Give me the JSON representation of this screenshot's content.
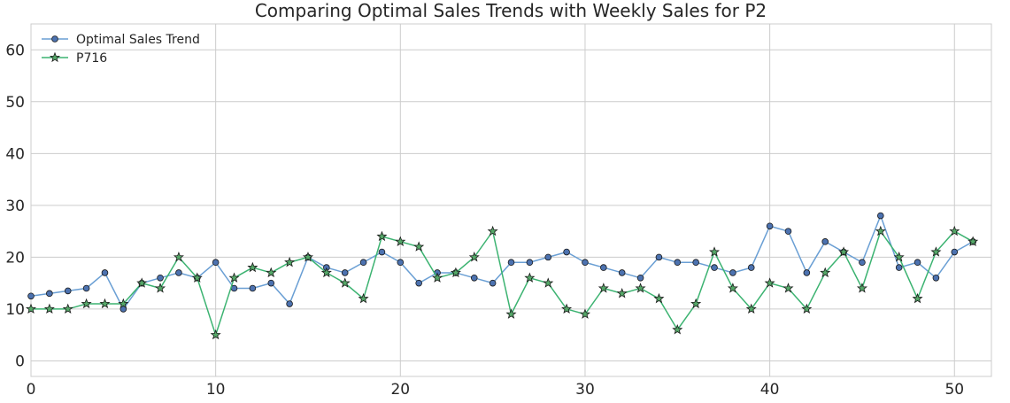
{
  "chart_data": {
    "type": "line",
    "title": "Comparing Optimal Sales Trends with Weekly Sales for P2",
    "xlabel": "",
    "ylabel": "",
    "xlim": [
      0,
      52
    ],
    "ylim": [
      -3,
      65
    ],
    "xticks": [
      0,
      10,
      20,
      30,
      40,
      50
    ],
    "yticks": [
      0,
      10,
      20,
      30,
      40,
      50,
      60
    ],
    "grid": true,
    "legend_position": "top-left",
    "x": [
      0,
      1,
      2,
      3,
      4,
      5,
      6,
      7,
      8,
      9,
      10,
      11,
      12,
      13,
      14,
      15,
      16,
      17,
      18,
      19,
      20,
      21,
      22,
      23,
      24,
      25,
      26,
      27,
      28,
      29,
      30,
      31,
      32,
      33,
      34,
      35,
      36,
      37,
      38,
      39,
      40,
      41,
      42,
      43,
      44,
      45,
      46,
      47,
      48,
      49,
      50,
      51
    ],
    "series": [
      {
        "name": "Optimal Sales Trend",
        "color": "#4c72b0",
        "line_color": "#6a9fd4",
        "marker": "circle",
        "values": [
          12.5,
          13,
          13.5,
          14,
          17,
          10,
          15,
          16,
          17,
          16,
          19,
          14,
          14,
          15,
          11,
          20,
          18,
          17,
          19,
          21,
          19,
          15,
          17,
          17,
          16,
          15,
          19,
          19,
          20,
          21,
          19,
          18,
          17,
          16,
          20,
          19,
          19,
          18,
          17,
          18,
          26,
          25,
          17,
          23,
          21,
          19,
          28,
          18,
          19,
          16,
          21,
          23
        ]
      },
      {
        "name": "P716",
        "color": "#55a868",
        "line_color": "#3cb371",
        "marker": "star",
        "values": [
          10,
          10,
          10,
          11,
          11,
          11,
          15,
          14,
          20,
          16,
          5,
          16,
          18,
          17,
          19,
          20,
          17,
          15,
          12,
          24,
          23,
          22,
          16,
          17,
          20,
          25,
          9,
          16,
          15,
          10,
          9,
          14,
          13,
          14,
          12,
          6,
          11,
          21,
          14,
          10,
          15,
          14,
          10,
          17,
          21,
          14,
          25,
          20,
          12,
          21,
          25,
          23
        ]
      }
    ]
  }
}
